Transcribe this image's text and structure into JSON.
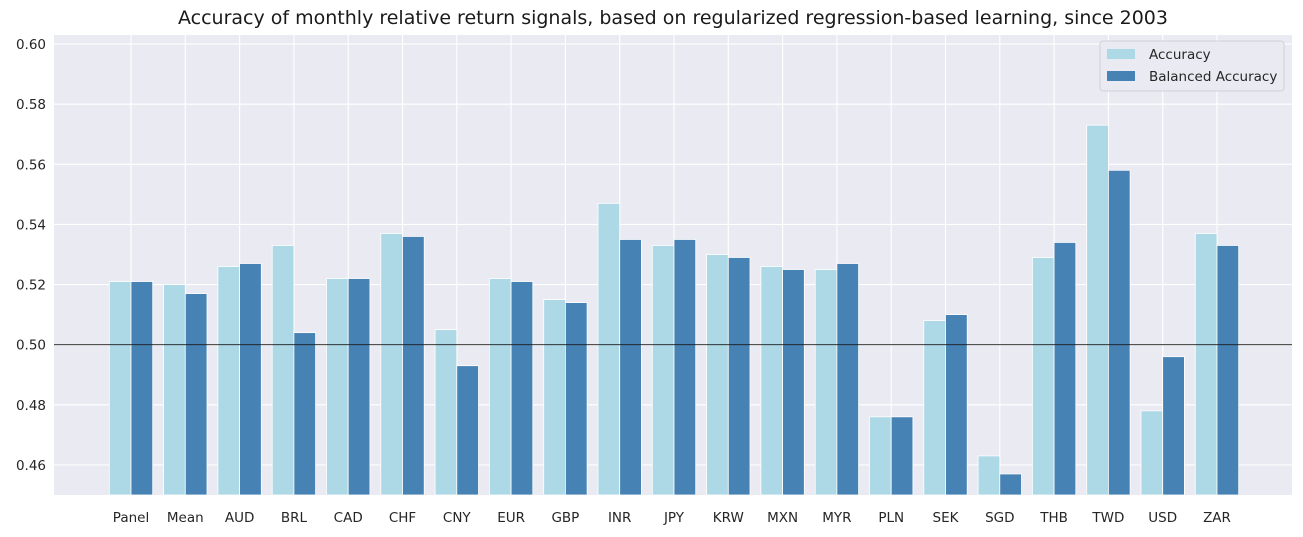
{
  "chart_data": {
    "type": "bar",
    "title": "Accuracy of monthly relative return signals, based on regularized regression-based learning, since 2003",
    "xlabel": "",
    "ylabel": "",
    "categories": [
      "Panel",
      "Mean",
      "AUD",
      "BRL",
      "CAD",
      "CHF",
      "CNY",
      "EUR",
      "GBP",
      "INR",
      "JPY",
      "KRW",
      "MXN",
      "MYR",
      "PLN",
      "SEK",
      "SGD",
      "THB",
      "TWD",
      "USD",
      "ZAR"
    ],
    "series": [
      {
        "name": "Accuracy",
        "color": "#add8e6",
        "values": [
          0.521,
          0.52,
          0.526,
          0.533,
          0.522,
          0.537,
          0.505,
          0.522,
          0.515,
          0.547,
          0.533,
          0.53,
          0.526,
          0.525,
          0.476,
          0.508,
          0.463,
          0.529,
          0.573,
          0.478,
          0.537
        ]
      },
      {
        "name": "Balanced Accuracy",
        "color": "#4682b4",
        "values": [
          0.521,
          0.517,
          0.527,
          0.504,
          0.522,
          0.536,
          0.493,
          0.521,
          0.514,
          0.535,
          0.535,
          0.529,
          0.525,
          0.527,
          0.476,
          0.51,
          0.457,
          0.534,
          0.558,
          0.496,
          0.533
        ]
      }
    ],
    "ylim": [
      0.45,
      0.603
    ],
    "yticks": [
      "0.46",
      "0.48",
      "0.50",
      "0.52",
      "0.54",
      "0.56",
      "0.58",
      "0.60"
    ],
    "reference_line": 0.5,
    "grid": true,
    "legend_position": "top-right",
    "background_color": "#eaeaf2"
  }
}
